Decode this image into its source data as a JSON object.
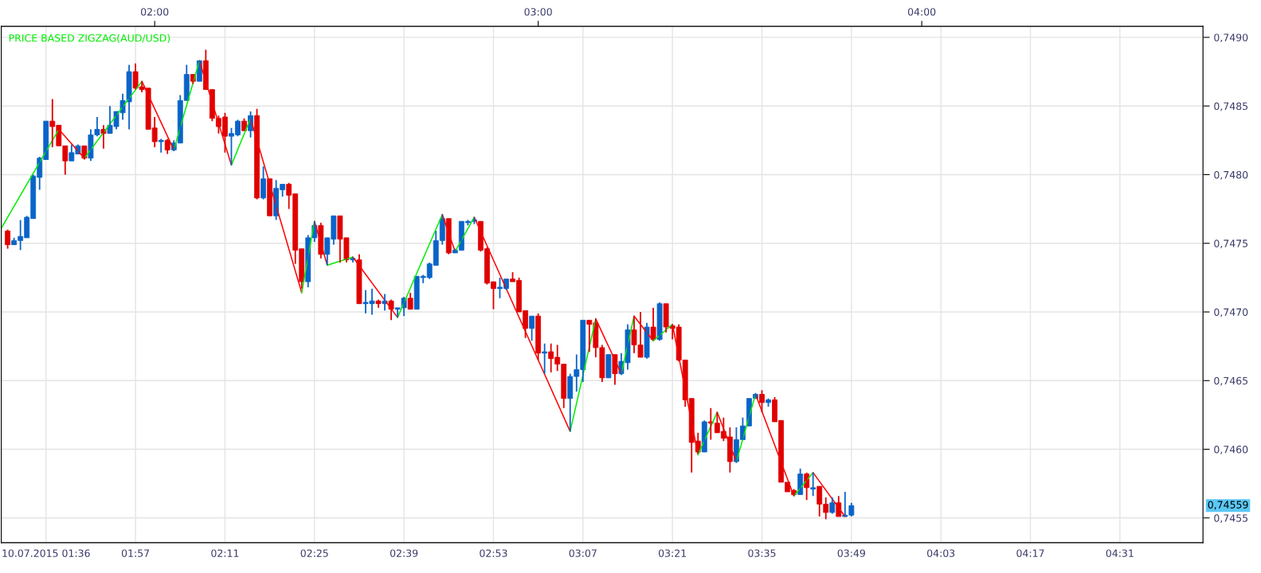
{
  "chart_data": {
    "type": "candlestick",
    "title": "PRICE BASED ZIGZAG(AUD/USD)",
    "xlim": [
      "2015-07-10T01:36",
      "2015-07-10T04:44"
    ],
    "xticks": [
      {
        "value": "2015-07-10T01:43",
        "label": "10.07.2015 01:36"
      },
      {
        "value": "2015-07-10T01:57",
        "label": "01:57"
      },
      {
        "value": "2015-07-10T02:11",
        "label": "02:11"
      },
      {
        "value": "2015-07-10T02:25",
        "label": "02:25"
      },
      {
        "value": "2015-07-10T02:39",
        "label": "02:39"
      },
      {
        "value": "2015-07-10T02:53",
        "label": "02:53"
      },
      {
        "value": "2015-07-10T03:07",
        "label": "03:07"
      },
      {
        "value": "2015-07-10T03:21",
        "label": "03:21"
      },
      {
        "value": "2015-07-10T03:35",
        "label": "03:35"
      },
      {
        "value": "2015-07-10T03:49",
        "label": "03:49"
      },
      {
        "value": "2015-07-10T04:03",
        "label": "04:03"
      },
      {
        "value": "2015-07-10T04:17",
        "label": "04:17"
      },
      {
        "value": "2015-07-10T04:31",
        "label": "04:31"
      }
    ],
    "x2lim": [
      "2015-07-10T01:36",
      "2015-07-10T04:44"
    ],
    "x2ticks": [
      {
        "value": "2015-07-10T02:00",
        "label": "02:00"
      },
      {
        "value": "2015-07-10T03:00",
        "label": "03:00"
      },
      {
        "value": "2015-07-10T04:00",
        "label": "04:00"
      }
    ],
    "ylim": [
      0.74532,
      0.74908
    ],
    "yticks": [
      {
        "value": 0.7455,
        "label": "0,7455"
      },
      {
        "value": 0.746,
        "label": "0,7460"
      },
      {
        "value": 0.7465,
        "label": "0,7465"
      },
      {
        "value": 0.747,
        "label": "0,7470"
      },
      {
        "value": 0.7475,
        "label": "0,7475"
      },
      {
        "value": 0.748,
        "label": "0,7480"
      },
      {
        "value": 0.7485,
        "label": "0,7485"
      },
      {
        "value": 0.749,
        "label": "0,7490"
      }
    ],
    "grid": true,
    "annotations": [
      "0,74559"
    ],
    "series": [
      {
        "color": "#0a64c8",
        "x": [
          "2015-07-10T01:38",
          "2015-07-10T01:39",
          "2015-07-10T01:40",
          "2015-07-10T01:41",
          "2015-07-10T01:42",
          "2015-07-10T01:43",
          "2015-07-10T01:47",
          "2015-07-10T01:48",
          "2015-07-10T01:50",
          "2015-07-10T01:51",
          "2015-07-10T01:53",
          "2015-07-10T01:54",
          "2015-07-10T01:55",
          "2015-07-10T01:56",
          "2015-07-10T02:01",
          "2015-07-10T02:03",
          "2015-07-10T02:04",
          "2015-07-10T02:05",
          "2015-07-10T02:07",
          "2015-07-10T02:12",
          "2015-07-10T02:13",
          "2015-07-10T02:15",
          "2015-07-10T02:17",
          "2015-07-10T02:19",
          "2015-07-10T02:20",
          "2015-07-10T02:24",
          "2015-07-10T02:25",
          "2015-07-10T02:27",
          "2015-07-10T02:28",
          "2015-07-10T02:31",
          "2015-07-10T02:33",
          "2015-07-10T02:34",
          "2015-07-10T02:36",
          "2015-07-10T02:38",
          "2015-07-10T02:39",
          "2015-07-10T02:41",
          "2015-07-10T02:42",
          "2015-07-10T02:43",
          "2015-07-10T02:44",
          "2015-07-10T02:45",
          "2015-07-10T02:47",
          "2015-07-10T02:48",
          "2015-07-10T02:49",
          "2015-07-10T02:50",
          "2015-07-10T02:54",
          "2015-07-10T02:55",
          "2015-07-10T02:59",
          "2015-07-10T03:01",
          "2015-07-10T03:05",
          "2015-07-10T03:06",
          "2015-07-10T03:07",
          "2015-07-10T03:11",
          "2015-07-10T03:13",
          "2015-07-10T03:14",
          "2015-07-10T03:17",
          "2015-07-10T03:19",
          "2015-07-10T03:26",
          "2015-07-10T03:31",
          "2015-07-10T03:32",
          "2015-07-10T03:33",
          "2015-07-10T03:34",
          "2015-07-10T03:36",
          "2015-07-10T03:41",
          "2015-07-10T03:43",
          "2015-07-10T03:46",
          "2015-07-10T03:48",
          "2015-07-10T03:49"
        ],
        "ohlc": [
          [
            0.74749,
            0.74754,
            0.74749,
            0.74752
          ],
          [
            0.74752,
            0.74767,
            0.74745,
            0.74755
          ],
          [
            0.74754,
            0.7477,
            0.74754,
            0.74769
          ],
          [
            0.74768,
            0.748,
            0.74768,
            0.74799
          ],
          [
            0.74798,
            0.74813,
            0.74789,
            0.74812
          ],
          [
            0.74811,
            0.74839,
            0.74811,
            0.74839
          ],
          [
            0.7481,
            0.74822,
            0.7481,
            0.74816
          ],
          [
            0.74815,
            0.74822,
            0.74815,
            0.74821
          ],
          [
            0.74812,
            0.74833,
            0.7481,
            0.74829
          ],
          [
            0.74829,
            0.74842,
            0.74828,
            0.74833
          ],
          [
            0.7483,
            0.7485,
            0.7483,
            0.74836
          ],
          [
            0.74835,
            0.74846,
            0.74833,
            0.74846
          ],
          [
            0.74845,
            0.74859,
            0.7484,
            0.74854
          ],
          [
            0.74853,
            0.7488,
            0.74833,
            0.74875
          ],
          [
            0.74824,
            0.74826,
            0.74816,
            0.74825
          ],
          [
            0.74818,
            0.74825,
            0.74817,
            0.74823
          ],
          [
            0.74823,
            0.74858,
            0.74823,
            0.74854
          ],
          [
            0.74854,
            0.7488,
            0.74854,
            0.74873
          ],
          [
            0.74868,
            0.74883,
            0.74868,
            0.74883
          ],
          [
            0.74828,
            0.74834,
            0.74807,
            0.7483
          ],
          [
            0.74829,
            0.7484,
            0.74828,
            0.74839
          ],
          [
            0.74832,
            0.74846,
            0.74827,
            0.74843
          ],
          [
            0.74783,
            0.74806,
            0.74782,
            0.74797
          ],
          [
            0.7477,
            0.74796,
            0.74767,
            0.7479
          ],
          [
            0.74789,
            0.74793,
            0.74784,
            0.74793
          ],
          [
            0.74722,
            0.74756,
            0.74718,
            0.74754
          ],
          [
            0.74754,
            0.74766,
            0.74751,
            0.74763
          ],
          [
            0.74742,
            0.74754,
            0.74734,
            0.74754
          ],
          [
            0.74753,
            0.7477,
            0.74749,
            0.7477
          ],
          [
            0.74738,
            0.7474,
            0.74736,
            0.74739
          ],
          [
            0.74706,
            0.74716,
            0.74699,
            0.74707
          ],
          [
            0.74706,
            0.74717,
            0.74698,
            0.74708
          ],
          [
            0.74706,
            0.74713,
            0.74701,
            0.74708
          ],
          [
            0.74702,
            0.74703,
            0.74696,
            0.74703
          ],
          [
            0.74703,
            0.74711,
            0.74697,
            0.7471
          ],
          [
            0.74702,
            0.74726,
            0.74702,
            0.74726
          ],
          [
            0.74725,
            0.74727,
            0.74721,
            0.74726
          ],
          [
            0.74725,
            0.74736,
            0.74724,
            0.74735
          ],
          [
            0.74734,
            0.74759,
            0.74734,
            0.74752
          ],
          [
            0.74752,
            0.74771,
            0.74749,
            0.74768
          ],
          [
            0.74743,
            0.74746,
            0.74743,
            0.74745
          ],
          [
            0.74745,
            0.74766,
            0.74745,
            0.74766
          ],
          [
            0.74765,
            0.74767,
            0.74763,
            0.74766
          ],
          [
            0.74766,
            0.74769,
            0.74764,
            0.74767
          ],
          [
            0.74717,
            0.74725,
            0.7471,
            0.74718
          ],
          [
            0.74717,
            0.74724,
            0.74716,
            0.74724
          ],
          [
            0.74688,
            0.74697,
            0.74679,
            0.74697
          ],
          [
            0.7467,
            0.74677,
            0.74655,
            0.74671
          ],
          [
            0.74637,
            0.74655,
            0.74613,
            0.74653
          ],
          [
            0.74653,
            0.74669,
            0.74642,
            0.74658
          ],
          [
            0.74658,
            0.74694,
            0.74649,
            0.74694
          ],
          [
            0.74652,
            0.74669,
            0.74652,
            0.74669
          ],
          [
            0.74655,
            0.7467,
            0.74654,
            0.74664
          ],
          [
            0.74663,
            0.74691,
            0.74658,
            0.74687
          ],
          [
            0.74667,
            0.74692,
            0.74666,
            0.74689
          ],
          [
            0.7468,
            0.74707,
            0.74679,
            0.74706
          ],
          [
            0.74598,
            0.74621,
            0.74598,
            0.7462
          ],
          [
            0.74591,
            0.74616,
            0.7459,
            0.74607
          ],
          [
            0.74607,
            0.74623,
            0.74607,
            0.74617
          ],
          [
            0.74617,
            0.74637,
            0.74617,
            0.74637
          ],
          [
            0.74637,
            0.74641,
            0.74637,
            0.7464
          ],
          [
            0.74634,
            0.74637,
            0.74631,
            0.74636
          ],
          [
            0.74567,
            0.74586,
            0.74567,
            0.74582
          ],
          [
            0.74571,
            0.74583,
            0.74566,
            0.74572
          ],
          [
            0.74554,
            0.74565,
            0.74553,
            0.74561
          ],
          [
            0.74551,
            0.74569,
            0.74551,
            0.74552
          ],
          [
            0.74552,
            0.74561,
            0.74551,
            0.74559
          ]
        ]
      },
      {
        "color": "#e00000",
        "x": [
          "2015-07-10T01:37",
          "2015-07-10T01:44",
          "2015-07-10T01:45",
          "2015-07-10T01:46",
          "2015-07-10T01:49",
          "2015-07-10T01:52",
          "2015-07-10T01:57",
          "2015-07-10T01:58",
          "2015-07-10T01:59",
          "2015-07-10T02:00",
          "2015-07-10T02:02",
          "2015-07-10T02:06",
          "2015-07-10T02:08",
          "2015-07-10T02:09",
          "2015-07-10T02:10",
          "2015-07-10T02:11",
          "2015-07-10T02:14",
          "2015-07-10T02:16",
          "2015-07-10T02:18",
          "2015-07-10T02:21",
          "2015-07-10T02:22",
          "2015-07-10T02:23",
          "2015-07-10T02:26",
          "2015-07-10T02:29",
          "2015-07-10T02:30",
          "2015-07-10T02:32",
          "2015-07-10T02:35",
          "2015-07-10T02:37",
          "2015-07-10T02:40",
          "2015-07-10T02:46",
          "2015-07-10T02:51",
          "2015-07-10T02:52",
          "2015-07-10T02:53",
          "2015-07-10T02:56",
          "2015-07-10T02:57",
          "2015-07-10T02:58",
          "2015-07-10T03:00",
          "2015-07-10T03:02",
          "2015-07-10T03:03",
          "2015-07-10T03:04",
          "2015-07-10T03:08",
          "2015-07-10T03:09",
          "2015-07-10T03:10",
          "2015-07-10T03:12",
          "2015-07-10T03:15",
          "2015-07-10T03:16",
          "2015-07-10T03:18",
          "2015-07-10T03:20",
          "2015-07-10T03:21",
          "2015-07-10T03:22",
          "2015-07-10T03:23",
          "2015-07-10T03:24",
          "2015-07-10T03:25",
          "2015-07-10T03:27",
          "2015-07-10T03:28",
          "2015-07-10T03:29",
          "2015-07-10T03:30",
          "2015-07-10T03:35",
          "2015-07-10T03:37",
          "2015-07-10T03:38",
          "2015-07-10T03:39",
          "2015-07-10T03:40",
          "2015-07-10T03:42",
          "2015-07-10T03:44",
          "2015-07-10T03:45",
          "2015-07-10T03:47"
        ],
        "ohlc": [
          [
            0.74759,
            0.7476,
            0.74746,
            0.74749
          ],
          [
            0.74839,
            0.74855,
            0.7482,
            0.74835
          ],
          [
            0.74836,
            0.74836,
            0.74821,
            0.74821
          ],
          [
            0.74821,
            0.74821,
            0.748,
            0.7481
          ],
          [
            0.74821,
            0.74821,
            0.74811,
            0.74812
          ],
          [
            0.74833,
            0.74836,
            0.74819,
            0.7483
          ],
          [
            0.74875,
            0.74881,
            0.74862,
            0.74863
          ],
          [
            0.74864,
            0.74868,
            0.7486,
            0.74862
          ],
          [
            0.74863,
            0.74863,
            0.74833,
            0.74833
          ],
          [
            0.74834,
            0.74842,
            0.7482,
            0.74824
          ],
          [
            0.74825,
            0.74826,
            0.74815,
            0.74818
          ],
          [
            0.74873,
            0.74873,
            0.74866,
            0.74868
          ],
          [
            0.74883,
            0.74891,
            0.74862,
            0.74862
          ],
          [
            0.74862,
            0.74862,
            0.74839,
            0.74841
          ],
          [
            0.74841,
            0.74843,
            0.7483,
            0.74835
          ],
          [
            0.74842,
            0.74845,
            0.74816,
            0.74828
          ],
          [
            0.74839,
            0.74841,
            0.74832,
            0.74832
          ],
          [
            0.74843,
            0.74848,
            0.74782,
            0.74783
          ],
          [
            0.74797,
            0.74797,
            0.7477,
            0.7477
          ],
          [
            0.74793,
            0.74794,
            0.74775,
            0.74785
          ],
          [
            0.74786,
            0.74786,
            0.74735,
            0.74745
          ],
          [
            0.74746,
            0.74746,
            0.74717,
            0.74722
          ],
          [
            0.74763,
            0.74765,
            0.74739,
            0.74742
          ],
          [
            0.7477,
            0.7477,
            0.74736,
            0.74753
          ],
          [
            0.74754,
            0.74754,
            0.74736,
            0.74738
          ],
          [
            0.74738,
            0.74742,
            0.74706,
            0.74706
          ],
          [
            0.74708,
            0.74709,
            0.74703,
            0.74706
          ],
          [
            0.74708,
            0.74709,
            0.74694,
            0.74702
          ],
          [
            0.7471,
            0.74714,
            0.74702,
            0.74702
          ],
          [
            0.74768,
            0.74768,
            0.74742,
            0.74743
          ],
          [
            0.74766,
            0.74766,
            0.74744,
            0.74745
          ],
          [
            0.74746,
            0.74747,
            0.7472,
            0.74721
          ],
          [
            0.74722,
            0.74722,
            0.74702,
            0.74717
          ],
          [
            0.74724,
            0.74729,
            0.74722,
            0.74722
          ],
          [
            0.74723,
            0.74725,
            0.747,
            0.747
          ],
          [
            0.74701,
            0.74701,
            0.74681,
            0.74688
          ],
          [
            0.74697,
            0.74699,
            0.74665,
            0.7467
          ],
          [
            0.74671,
            0.74677,
            0.74656,
            0.74666
          ],
          [
            0.74667,
            0.74676,
            0.74657,
            0.74662
          ],
          [
            0.74662,
            0.74662,
            0.7463,
            0.74637
          ],
          [
            0.74694,
            0.74694,
            0.74671,
            0.74691
          ],
          [
            0.74692,
            0.74695,
            0.74667,
            0.74674
          ],
          [
            0.74674,
            0.74676,
            0.74649,
            0.74652
          ],
          [
            0.74669,
            0.74669,
            0.74647,
            0.74655
          ],
          [
            0.74687,
            0.74697,
            0.7467,
            0.74676
          ],
          [
            0.74676,
            0.747,
            0.74667,
            0.74667
          ],
          [
            0.74689,
            0.74703,
            0.7468,
            0.7468
          ],
          [
            0.74706,
            0.74706,
            0.74685,
            0.74689
          ],
          [
            0.7469,
            0.74691,
            0.7468,
            0.74688
          ],
          [
            0.74689,
            0.74691,
            0.74664,
            0.74665
          ],
          [
            0.74665,
            0.74665,
            0.74631,
            0.74636
          ],
          [
            0.74637,
            0.74637,
            0.74583,
            0.74605
          ],
          [
            0.74606,
            0.74612,
            0.74597,
            0.74598
          ],
          [
            0.7462,
            0.7463,
            0.74607,
            0.74619
          ],
          [
            0.74619,
            0.74627,
            0.74612,
            0.74612
          ],
          [
            0.74613,
            0.74623,
            0.74606,
            0.74608
          ],
          [
            0.74609,
            0.74616,
            0.74583,
            0.74591
          ],
          [
            0.7464,
            0.74643,
            0.74627,
            0.74634
          ],
          [
            0.74636,
            0.74638,
            0.7462,
            0.7462
          ],
          [
            0.74621,
            0.74621,
            0.74576,
            0.74576
          ],
          [
            0.74576,
            0.74576,
            0.74569,
            0.74569
          ],
          [
            0.7457,
            0.74571,
            0.74566,
            0.74567
          ],
          [
            0.74582,
            0.74583,
            0.74563,
            0.74572
          ],
          [
            0.74573,
            0.74573,
            0.74551,
            0.7456
          ],
          [
            0.7456,
            0.74565,
            0.74549,
            0.74554
          ],
          [
            0.74561,
            0.74566,
            0.74551,
            0.74551
          ]
        ]
      },
      {
        "type": "line",
        "color": "#00ee00",
        "x": [
          "2015-07-10T01:36",
          "2015-07-10T01:45"
        ],
        "values": [
          0.74761,
          0.74833
        ]
      },
      {
        "type": "line",
        "color": "#ff0000",
        "x": [
          "2015-07-10T01:45",
          "2015-07-10T01:49"
        ],
        "values": [
          0.74833,
          0.74812
        ]
      },
      {
        "type": "line",
        "color": "#00ee00",
        "x": [
          "2015-07-10T01:49",
          "2015-07-10T01:58"
        ],
        "values": [
          0.74812,
          0.74868
        ]
      },
      {
        "type": "line",
        "color": "#ff0000",
        "x": [
          "2015-07-10T01:58",
          "2015-07-10T02:03"
        ],
        "values": [
          0.74868,
          0.74818
        ]
      },
      {
        "type": "line",
        "color": "#00ee00",
        "x": [
          "2015-07-10T02:03",
          "2015-07-10T02:07"
        ],
        "values": [
          0.74818,
          0.74883
        ]
      },
      {
        "type": "line",
        "color": "#ff0000",
        "x": [
          "2015-07-10T02:07",
          "2015-07-10T02:12"
        ],
        "values": [
          0.74883,
          0.74807
        ]
      },
      {
        "type": "line",
        "color": "#00ee00",
        "x": [
          "2015-07-10T02:12",
          "2015-07-10T02:15"
        ],
        "values": [
          0.74807,
          0.74841
        ]
      },
      {
        "type": "line",
        "color": "#ff0000",
        "x": [
          "2015-07-10T02:15",
          "2015-07-10T02:23"
        ],
        "values": [
          0.74841,
          0.74714
        ]
      },
      {
        "type": "line",
        "color": "#00ee00",
        "x": [
          "2015-07-10T02:23",
          "2015-07-10T02:25"
        ],
        "values": [
          0.74714,
          0.74766
        ]
      },
      {
        "type": "line",
        "color": "#ff0000",
        "x": [
          "2015-07-10T02:25",
          "2015-07-10T02:27"
        ],
        "values": [
          0.74766,
          0.74734
        ]
      },
      {
        "type": "line",
        "color": "#00ee00",
        "x": [
          "2015-07-10T02:27",
          "2015-07-10T02:31"
        ],
        "values": [
          0.74734,
          0.7474
        ]
      },
      {
        "type": "line",
        "color": "#ff0000",
        "x": [
          "2015-07-10T02:31",
          "2015-07-10T02:38"
        ],
        "values": [
          0.7474,
          0.74696
        ]
      },
      {
        "type": "line",
        "color": "#00ee00",
        "x": [
          "2015-07-10T02:38",
          "2015-07-10T02:45"
        ],
        "values": [
          0.74696,
          0.74771
        ]
      },
      {
        "type": "line",
        "color": "#ff0000",
        "x": [
          "2015-07-10T02:45",
          "2015-07-10T02:47"
        ],
        "values": [
          0.74771,
          0.74744
        ]
      },
      {
        "type": "line",
        "color": "#00ee00",
        "x": [
          "2015-07-10T02:47",
          "2015-07-10T02:50"
        ],
        "values": [
          0.74744,
          0.74769
        ]
      },
      {
        "type": "line",
        "color": "#ff0000",
        "x": [
          "2015-07-10T02:50",
          "2015-07-10T03:05"
        ],
        "values": [
          0.74769,
          0.74613
        ]
      },
      {
        "type": "line",
        "color": "#00ee00",
        "x": [
          "2015-07-10T03:05",
          "2015-07-10T03:09"
        ],
        "values": [
          0.74613,
          0.74695
        ]
      },
      {
        "type": "line",
        "color": "#ff0000",
        "x": [
          "2015-07-10T03:09",
          "2015-07-10T03:13"
        ],
        "values": [
          0.74695,
          0.74655
        ]
      },
      {
        "type": "line",
        "color": "#00ee00",
        "x": [
          "2015-07-10T03:13",
          "2015-07-10T03:15"
        ],
        "values": [
          0.74655,
          0.74697
        ]
      },
      {
        "type": "line",
        "color": "#ff0000",
        "x": [
          "2015-07-10T03:15",
          "2015-07-10T03:18"
        ],
        "values": [
          0.74697,
          0.74679
        ]
      },
      {
        "type": "line",
        "color": "#00ee00",
        "x": [
          "2015-07-10T03:18",
          "2015-07-10T03:21"
        ],
        "values": [
          0.74679,
          0.74691
        ]
      },
      {
        "type": "line",
        "color": "#ff0000",
        "x": [
          "2015-07-10T03:21",
          "2015-07-10T03:25"
        ],
        "values": [
          0.74691,
          0.74596
        ]
      },
      {
        "type": "line",
        "color": "#00ee00",
        "x": [
          "2015-07-10T03:25",
          "2015-07-10T03:28"
        ],
        "values": [
          0.74596,
          0.74627
        ]
      },
      {
        "type": "line",
        "color": "#ff0000",
        "x": [
          "2015-07-10T03:28",
          "2015-07-10T03:31"
        ],
        "values": [
          0.74627,
          0.74591
        ]
      },
      {
        "type": "line",
        "color": "#00ee00",
        "x": [
          "2015-07-10T03:31",
          "2015-07-10T03:34"
        ],
        "values": [
          0.74591,
          0.7464
        ]
      },
      {
        "type": "line",
        "color": "#ff0000",
        "x": [
          "2015-07-10T03:34",
          "2015-07-10T03:40"
        ],
        "values": [
          0.7464,
          0.74566
        ]
      },
      {
        "type": "line",
        "color": "#00ee00",
        "x": [
          "2015-07-10T03:40",
          "2015-07-10T03:43"
        ],
        "values": [
          0.74566,
          0.74583
        ]
      },
      {
        "type": "line",
        "color": "#ff0000",
        "x": [
          "2015-07-10T03:43",
          "2015-07-10T03:48"
        ],
        "values": [
          0.74583,
          0.74551
        ]
      }
    ]
  }
}
